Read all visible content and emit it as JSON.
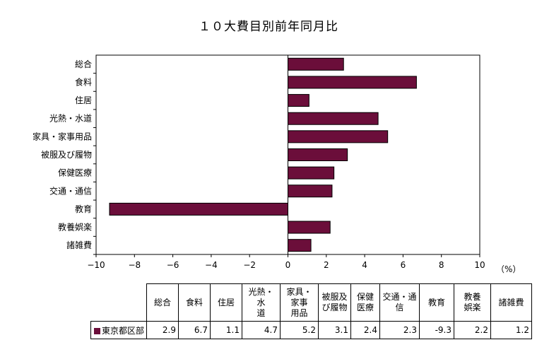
{
  "chart_data": {
    "type": "bar",
    "orientation": "horizontal",
    "title": "１０大費目別前年同月比",
    "unit_label": "（%）",
    "categories": [
      "総合",
      "食料",
      "住居",
      "光熱・水道",
      "家具・家事用品",
      "被服及び履物",
      "保健医療",
      "交通・通信",
      "教育",
      "教養娯楽",
      "諸雑費"
    ],
    "table_headers": [
      "総合",
      "食料",
      "住居",
      "光熱・水\n道",
      "家具・\n家事\n用品",
      "被服及\nび履物",
      "保健\n医療",
      "交通・通\n信",
      "教育",
      "教養\n娯楽",
      "諸雑費"
    ],
    "series": [
      {
        "name": "東京都区部",
        "values": [
          2.9,
          6.7,
          1.1,
          4.7,
          5.2,
          3.1,
          2.4,
          2.3,
          -9.3,
          2.2,
          1.2
        ],
        "display_values": [
          "2.9",
          "6.7",
          "1.1",
          "4.7",
          "5.2",
          "3.1",
          "2.4",
          "2.3",
          "-9.3",
          "2.2",
          "1.2"
        ],
        "color": "#6B0E3A"
      }
    ],
    "xlim": [
      -10,
      10
    ],
    "xticks": [
      -10,
      -8,
      -6,
      -4,
      -2,
      0,
      2,
      4,
      6,
      8,
      10
    ],
    "xtick_labels": [
      "−10",
      "−8",
      "−6",
      "−4",
      "−2",
      "0",
      "2",
      "4",
      "6",
      "8",
      "10"
    ],
    "grid": false,
    "legend": "table-below"
  }
}
